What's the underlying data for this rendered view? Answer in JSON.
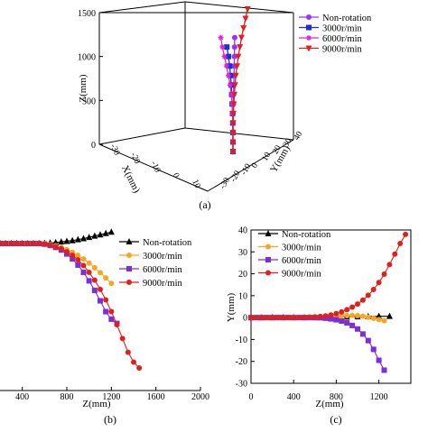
{
  "chart_data": [
    {
      "panel": "(a)",
      "type": "line",
      "projection": "3d",
      "zlabel": "Z(mm)",
      "xlabel": "X(mm)",
      "ylabel": "Y(mm)",
      "zlim": [
        0,
        1500
      ],
      "zticks": [
        "0",
        "500",
        "1000",
        "1500"
      ],
      "xticks": [
        "-30",
        "-20",
        "-10",
        "0",
        "10"
      ],
      "yticks": [
        "40",
        "30",
        "20",
        "10",
        "0",
        "-10",
        "-20",
        "-30"
      ],
      "legend_position": "top-right",
      "series": [
        {
          "name": "Non-rotation",
          "color": "#9b30ff",
          "marker": "circle",
          "points": [
            [
              0,
              0,
              0
            ],
            [
              0,
              0,
              100
            ],
            [
              0,
              0,
              200
            ],
            [
              0,
              0.2,
              300
            ],
            [
              0,
              0.5,
              400
            ],
            [
              0,
              1,
              500
            ],
            [
              0,
              1.5,
              600
            ],
            [
              0,
              2,
              700
            ],
            [
              0,
              2.5,
              800
            ],
            [
              0,
              3,
              900
            ],
            [
              0,
              3.5,
              1000
            ],
            [
              0,
              4,
              1100
            ],
            [
              0,
              4.3,
              1200
            ]
          ]
        },
        {
          "name": "3000r/min",
          "color": "#1a2fd6",
          "marker": "square",
          "points": [
            [
              0,
              0,
              0
            ],
            [
              0,
              0,
              100
            ],
            [
              0,
              0,
              200
            ],
            [
              0,
              -0.5,
              300
            ],
            [
              0,
              -1,
              400
            ],
            [
              0,
              -2,
              500
            ],
            [
              0,
              -3,
              600
            ],
            [
              0,
              -4,
              700
            ],
            [
              0,
              -6,
              800
            ],
            [
              0,
              -8,
              900
            ],
            [
              0,
              -11,
              1000
            ],
            [
              0,
              -15,
              1100
            ]
          ]
        },
        {
          "name": "6000r/min",
          "color": "#e020e0",
          "marker": "star",
          "points": [
            [
              0,
              0,
              0
            ],
            [
              0,
              0,
              100
            ],
            [
              0,
              0,
              200
            ],
            [
              0,
              0,
              300
            ],
            [
              0,
              -1,
              400
            ],
            [
              0,
              -2,
              500
            ],
            [
              0,
              -4,
              600
            ],
            [
              0,
              -7,
              700
            ],
            [
              0,
              -11,
              800
            ],
            [
              0,
              -16,
              900
            ],
            [
              0,
              -21,
              1000
            ],
            [
              0,
              -26,
              1100
            ],
            [
              0,
              -30,
              1200
            ]
          ]
        },
        {
          "name": "9000r/min",
          "color": "#e0201c",
          "marker": "triangle-down",
          "points": [
            [
              0,
              0,
              0
            ],
            [
              0,
              0,
              100
            ],
            [
              0,
              0,
              200
            ],
            [
              0,
              0.5,
              300
            ],
            [
              0,
              1,
              400
            ],
            [
              0,
              2,
              500
            ],
            [
              0,
              3.5,
              600
            ],
            [
              0,
              5,
              700
            ],
            [
              0,
              7,
              800
            ],
            [
              0,
              10,
              900
            ],
            [
              0,
              13,
              1000
            ],
            [
              0,
              17,
              1100
            ],
            [
              0,
              21,
              1200
            ],
            [
              0,
              26,
              1300
            ],
            [
              0,
              31,
              1400
            ],
            [
              0,
              36,
              1500
            ]
          ]
        }
      ]
    },
    {
      "panel": "(b)",
      "type": "line",
      "xlabel": "Z(mm)",
      "ylabel": "",
      "xlim": [
        200,
        2000
      ],
      "xticks": [
        400,
        800,
        1200,
        1600,
        2000
      ],
      "ylim": [
        -40,
        4
      ],
      "legend_position": "top-right",
      "series": [
        {
          "name": "Non-rotation",
          "color": "#000000",
          "marker": "triangle-up",
          "x": [
            200,
            250,
            300,
            350,
            400,
            450,
            500,
            550,
            600,
            650,
            700,
            750,
            800,
            850,
            900,
            950,
            1000,
            1050,
            1100,
            1150,
            1200
          ],
          "y": [
            0,
            0,
            0,
            0,
            0,
            0,
            0,
            0,
            0.1,
            0.2,
            0.3,
            0.5,
            0.7,
            0.9,
            1.2,
            1.5,
            1.9,
            2.3,
            2.7,
            3.1,
            3.5
          ]
        },
        {
          "name": "3000r/min",
          "color": "#f5a623",
          "marker": "circle",
          "x": [
            200,
            250,
            300,
            350,
            400,
            450,
            500,
            550,
            600,
            650,
            700,
            750,
            800,
            850,
            900,
            950,
            1000,
            1050,
            1100,
            1150,
            1200
          ],
          "y": [
            0,
            0,
            0,
            0,
            0,
            0,
            0,
            0,
            0,
            -0.3,
            -0.7,
            -1.2,
            -1.9,
            -2.7,
            -3.6,
            -4.7,
            -6.0,
            -7.4,
            -8.9,
            -10.5,
            -12.2
          ]
        },
        {
          "name": "6000r/min",
          "color": "#7d2ed6",
          "marker": "square",
          "x": [
            200,
            250,
            300,
            350,
            400,
            450,
            500,
            550,
            600,
            650,
            700,
            750,
            800,
            850,
            900,
            950,
            1000,
            1050,
            1100,
            1150,
            1200,
            1250
          ],
          "y": [
            0,
            0,
            0,
            0,
            0,
            0,
            0,
            0,
            -0.2,
            -0.6,
            -1.2,
            -2.0,
            -3.2,
            -4.7,
            -6.6,
            -8.8,
            -11.4,
            -14.3,
            -17.5,
            -20.8,
            -23.1,
            -24.4
          ]
        },
        {
          "name": "9000r/min",
          "color": "#e0201c",
          "marker": "circle",
          "x": [
            200,
            250,
            300,
            350,
            400,
            450,
            500,
            550,
            600,
            650,
            700,
            750,
            800,
            850,
            900,
            950,
            1000,
            1050,
            1100,
            1150,
            1200,
            1250,
            1300,
            1350,
            1400,
            1450
          ],
          "y": [
            0,
            0,
            0,
            0,
            0,
            0,
            0,
            0,
            -0.2,
            -0.5,
            -1.0,
            -1.6,
            -2.5,
            -3.6,
            -5.0,
            -6.7,
            -8.8,
            -11.2,
            -14.0,
            -17.2,
            -20.8,
            -24.8,
            -29.0,
            -33.2,
            -36.2,
            -38.0
          ]
        }
      ]
    },
    {
      "panel": "(c)",
      "type": "line",
      "xlabel": "Z(mm)",
      "ylabel": "Y(mm)",
      "xlim": [
        0,
        1500
      ],
      "xticks": [
        0,
        400,
        800,
        1200
      ],
      "ylim": [
        -30,
        40
      ],
      "yticks": [
        -30,
        -20,
        -10,
        0,
        10,
        20,
        30,
        40
      ],
      "legend_position": "top-left",
      "series": [
        {
          "name": "Non-rotation",
          "color": "#000000",
          "marker": "triangle-up",
          "x": [
            0,
            100,
            200,
            300,
            400,
            500,
            600,
            700,
            800,
            900,
            1000,
            1100,
            1200,
            1300
          ],
          "y": [
            0,
            0,
            0,
            0,
            0,
            0,
            0,
            0.1,
            0.2,
            0.3,
            0.4,
            0.5,
            0.6,
            0.6
          ]
        },
        {
          "name": "3000r/min",
          "color": "#f5a623",
          "marker": "circle",
          "x": [
            0,
            50,
            100,
            150,
            200,
            250,
            300,
            350,
            400,
            450,
            500,
            550,
            600,
            650,
            700,
            750,
            800,
            850,
            900,
            950,
            1000,
            1050,
            1100,
            1150,
            1200,
            1250
          ],
          "y": [
            0,
            0,
            0,
            0,
            0,
            0,
            0,
            0,
            0,
            0,
            0,
            0,
            0.1,
            0.2,
            0.3,
            0.4,
            0.6,
            0.8,
            0.9,
            1.0,
            0.9,
            0.6,
            0.2,
            -0.3,
            -0.9,
            -1.4
          ]
        },
        {
          "name": "6000r/min",
          "color": "#7d2ed6",
          "marker": "square",
          "x": [
            0,
            50,
            100,
            150,
            200,
            250,
            300,
            350,
            400,
            450,
            500,
            550,
            600,
            650,
            700,
            750,
            800,
            850,
            900,
            950,
            1000,
            1050,
            1100,
            1150,
            1200,
            1250
          ],
          "y": [
            0,
            0,
            0,
            0,
            0,
            0,
            0,
            0,
            0,
            0,
            0,
            0,
            0,
            -0.1,
            -0.3,
            -0.6,
            -1.0,
            -1.6,
            -2.4,
            -3.6,
            -5.2,
            -7.5,
            -10.5,
            -14.5,
            -19.5,
            -24.0
          ]
        },
        {
          "name": "9000r/min",
          "color": "#e0201c",
          "marker": "circle",
          "x": [
            0,
            50,
            100,
            150,
            200,
            250,
            300,
            350,
            400,
            450,
            500,
            550,
            600,
            650,
            700,
            750,
            800,
            850,
            900,
            950,
            1000,
            1050,
            1100,
            1150,
            1200,
            1250,
            1300,
            1350,
            1400,
            1450
          ],
          "y": [
            0,
            0,
            0,
            0,
            0,
            0,
            0,
            0,
            0,
            0,
            0.1,
            0.2,
            0.3,
            0.5,
            0.8,
            1.2,
            1.8,
            2.6,
            3.6,
            4.8,
            6.2,
            8.0,
            10.2,
            12.8,
            16.0,
            19.8,
            24.2,
            29.0,
            33.8,
            38.0
          ]
        }
      ]
    }
  ],
  "captions": {
    "a": "(a)",
    "b": "(b)",
    "c": "(c)"
  }
}
